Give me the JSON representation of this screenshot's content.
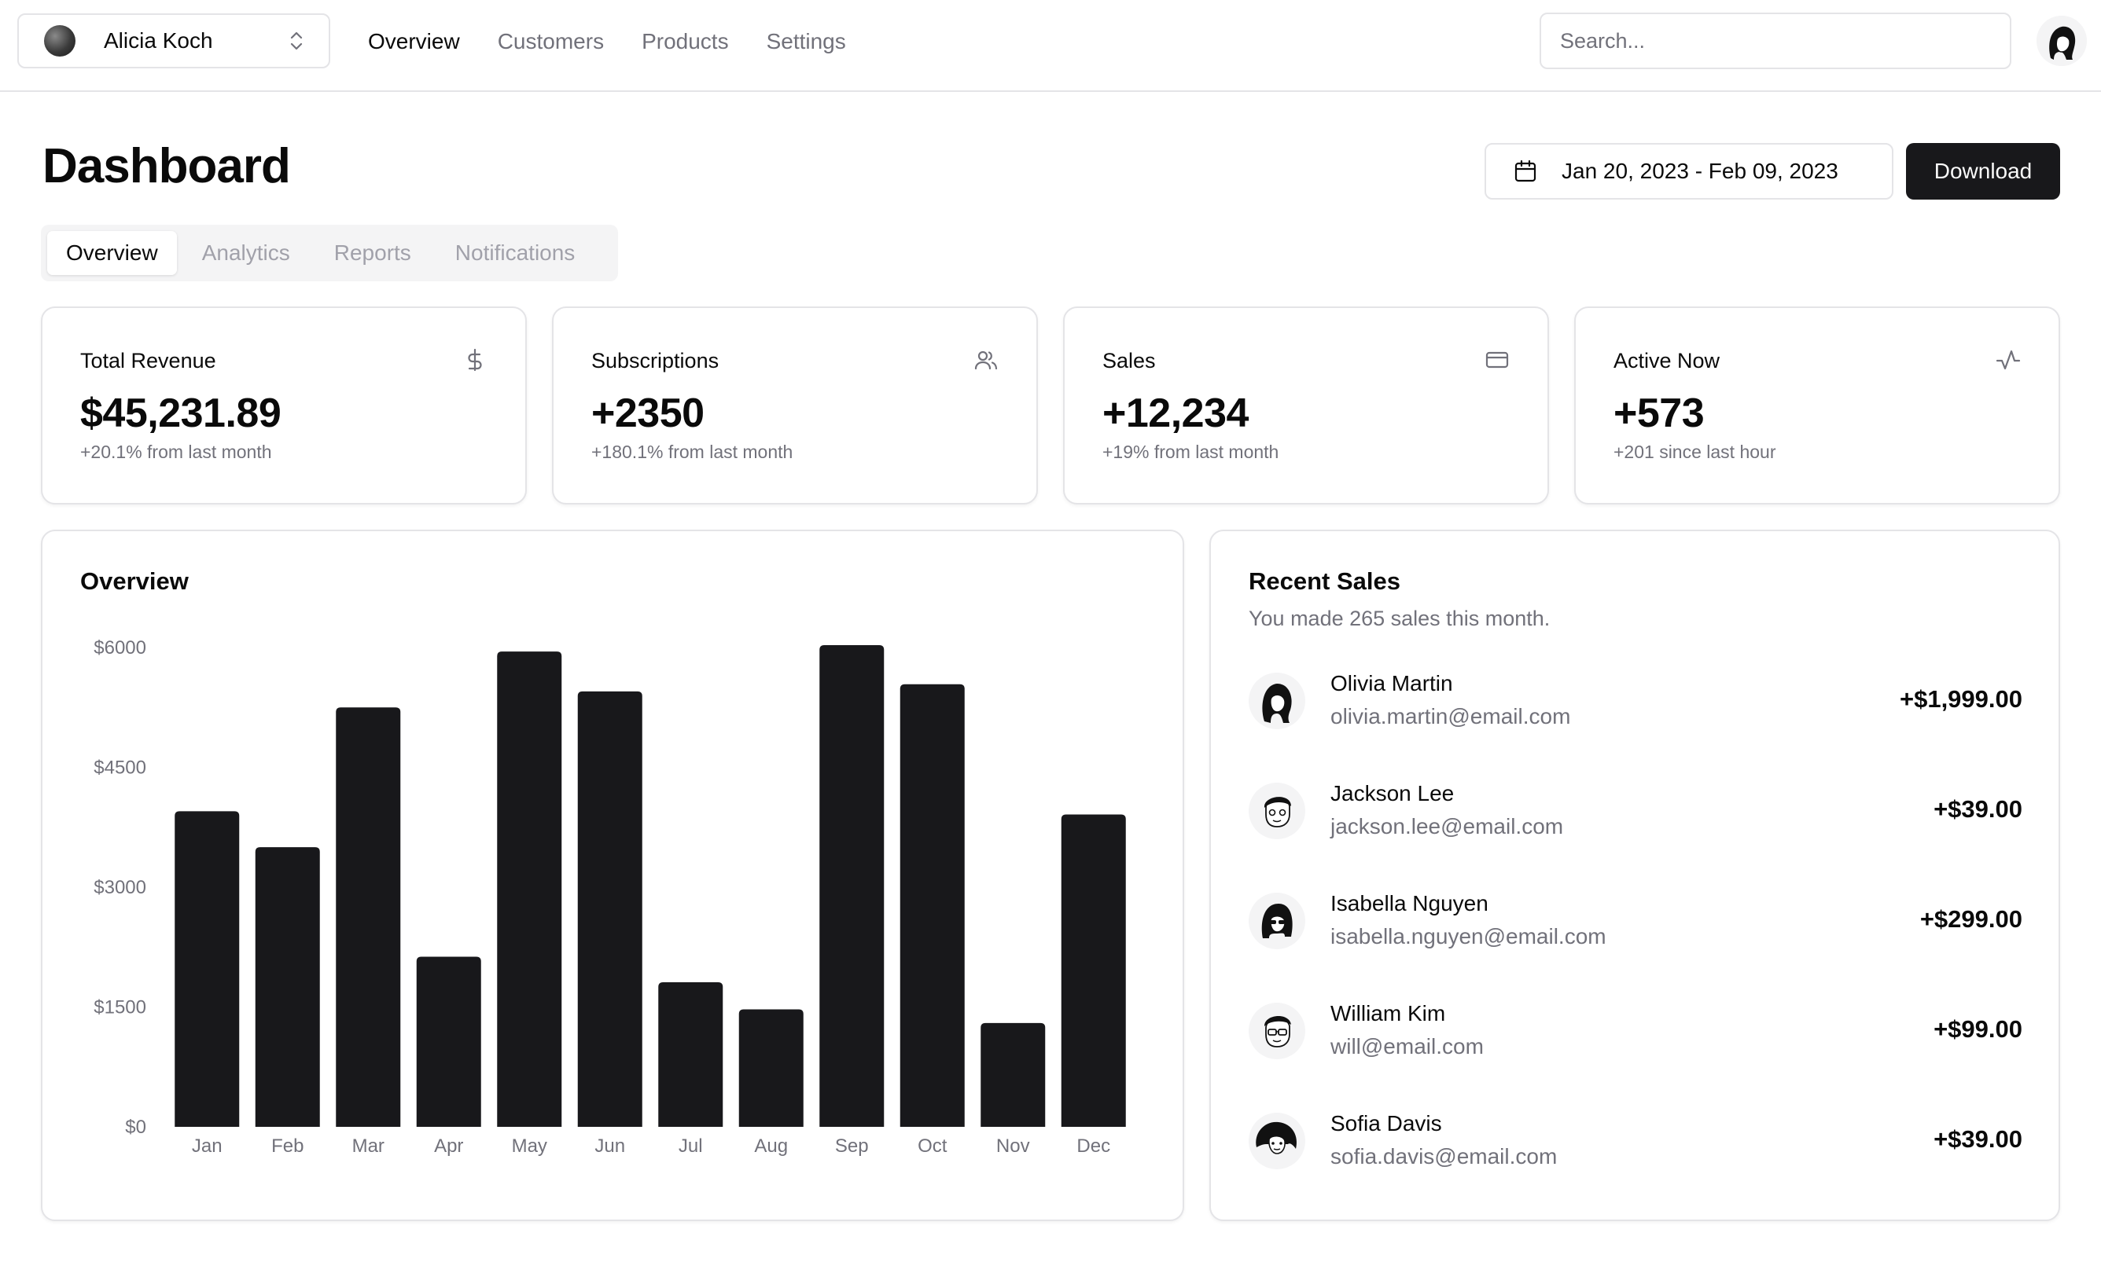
{
  "topbar": {
    "team": {
      "name": "Alicia Koch"
    },
    "nav": [
      {
        "label": "Overview",
        "active": true
      },
      {
        "label": "Customers",
        "active": false
      },
      {
        "label": "Products",
        "active": false
      },
      {
        "label": "Settings",
        "active": false
      }
    ],
    "search": {
      "placeholder": "Search...",
      "value": ""
    }
  },
  "header": {
    "title": "Dashboard",
    "date_range": "Jan 20, 2023 - Feb 09, 2023",
    "download_label": "Download"
  },
  "tabs": [
    {
      "label": "Overview",
      "active": true
    },
    {
      "label": "Analytics",
      "active": false
    },
    {
      "label": "Reports",
      "active": false
    },
    {
      "label": "Notifications",
      "active": false
    }
  ],
  "stats": [
    {
      "title": "Total Revenue",
      "value": "$45,231.89",
      "sub": "+20.1% from last month",
      "icon": "dollar-icon"
    },
    {
      "title": "Subscriptions",
      "value": "+2350",
      "sub": "+180.1% from last month",
      "icon": "users-icon"
    },
    {
      "title": "Sales",
      "value": "+12,234",
      "sub": "+19% from last month",
      "icon": "credit-card-icon"
    },
    {
      "title": "Active Now",
      "value": "+573",
      "sub": "+201 since last hour",
      "icon": "activity-icon"
    }
  ],
  "overview": {
    "title": "Overview"
  },
  "chart_data": {
    "type": "bar",
    "categories": [
      "Jan",
      "Feb",
      "Mar",
      "Apr",
      "May",
      "Jun",
      "Jul",
      "Aug",
      "Sep",
      "Oct",
      "Nov",
      "Dec"
    ],
    "values": [
      3950,
      3500,
      5250,
      2130,
      5950,
      5450,
      1810,
      1470,
      6030,
      5540,
      1300,
      3910
    ],
    "ytick_labels": [
      "$0",
      "$1500",
      "$3000",
      "$4500",
      "$6000"
    ],
    "yticks": [
      0,
      1500,
      3000,
      4500,
      6000
    ],
    "ylim": [
      0,
      6000
    ],
    "bar_color": "#18181b",
    "grid": false
  },
  "recent_sales": {
    "title": "Recent Sales",
    "subtitle": "You made 265 sales this month.",
    "items": [
      {
        "name": "Olivia Martin",
        "email": "olivia.martin@email.com",
        "amount": "+$1,999.00"
      },
      {
        "name": "Jackson Lee",
        "email": "jackson.lee@email.com",
        "amount": "+$39.00"
      },
      {
        "name": "Isabella Nguyen",
        "email": "isabella.nguyen@email.com",
        "amount": "+$299.00"
      },
      {
        "name": "William Kim",
        "email": "will@email.com",
        "amount": "+$99.00"
      },
      {
        "name": "Sofia Davis",
        "email": "sofia.davis@email.com",
        "amount": "+$39.00"
      }
    ]
  }
}
